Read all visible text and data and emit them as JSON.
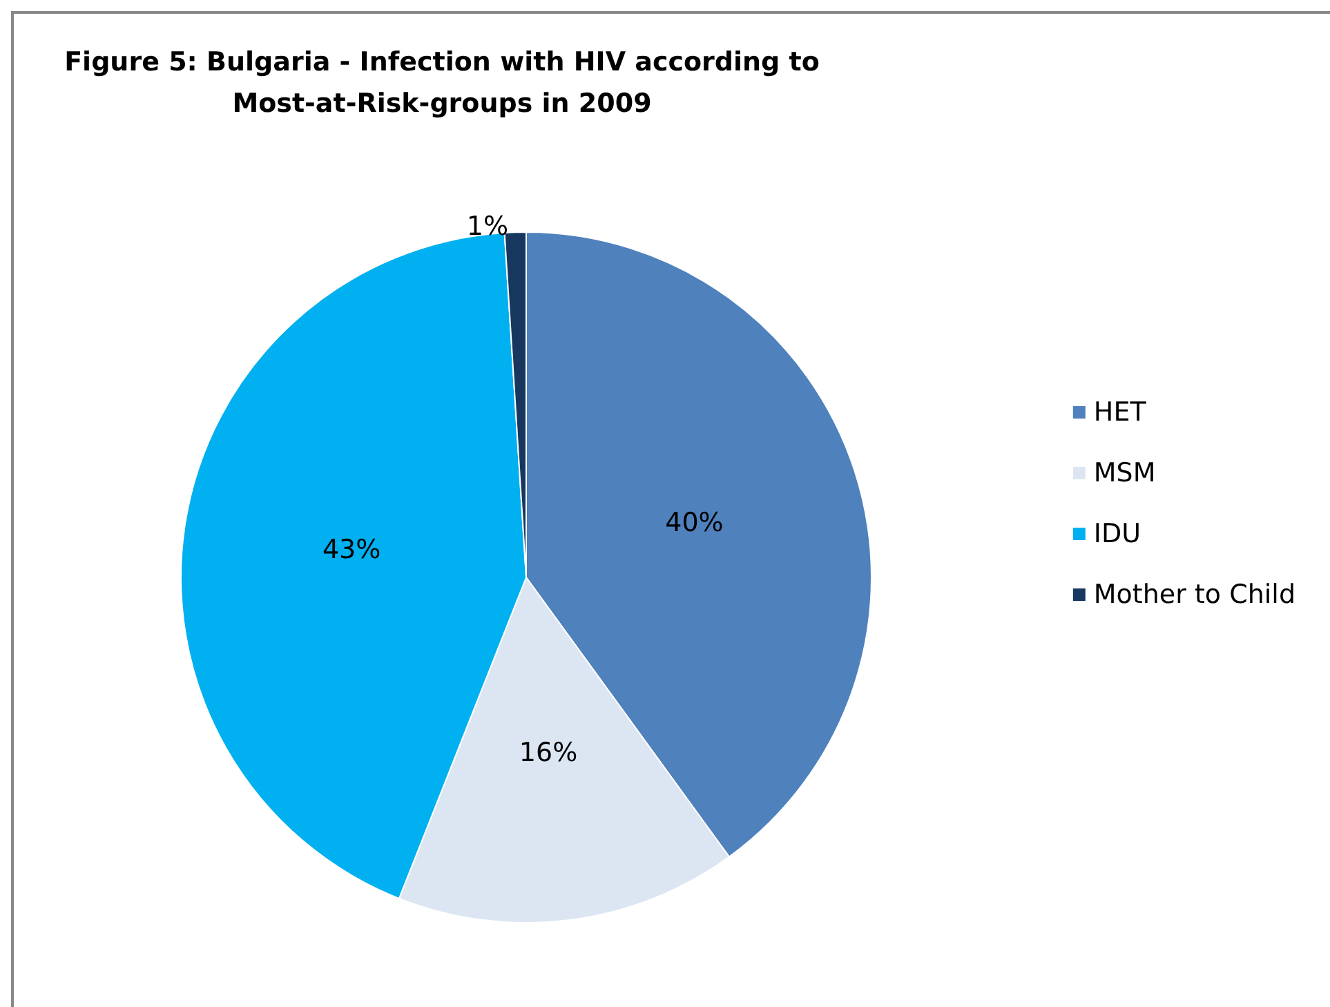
{
  "chart_data": {
    "type": "pie",
    "title": "Figure 5: Bulgaria - Infection with HIV according to\nMost-at-Risk-groups  in 2009",
    "categories": [
      "HET",
      "MSM",
      "IDU",
      "Mother to Child"
    ],
    "values": [
      40,
      16,
      43,
      1
    ],
    "colors": [
      "#4f81bd",
      "#dce6f2",
      "#00b0f0",
      "#17375e"
    ],
    "value_labels": [
      "40%",
      "16%",
      "43%",
      "1%"
    ],
    "legend": "right"
  }
}
